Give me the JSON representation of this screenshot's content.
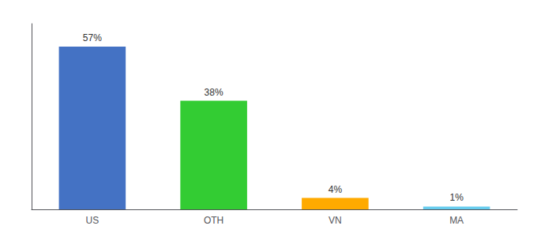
{
  "chart_data": {
    "type": "bar",
    "categories": [
      "US",
      "OTH",
      "VN",
      "MA"
    ],
    "values": [
      57,
      38,
      4,
      1
    ],
    "value_labels": [
      "57%",
      "38%",
      "4%",
      "1%"
    ],
    "data_labels": true,
    "colors": [
      "#4472c4",
      "#33cc33",
      "#ffaa00",
      "#66ccee"
    ],
    "ylim": [
      0,
      65
    ],
    "grid": false,
    "tick_labels": "x"
  }
}
